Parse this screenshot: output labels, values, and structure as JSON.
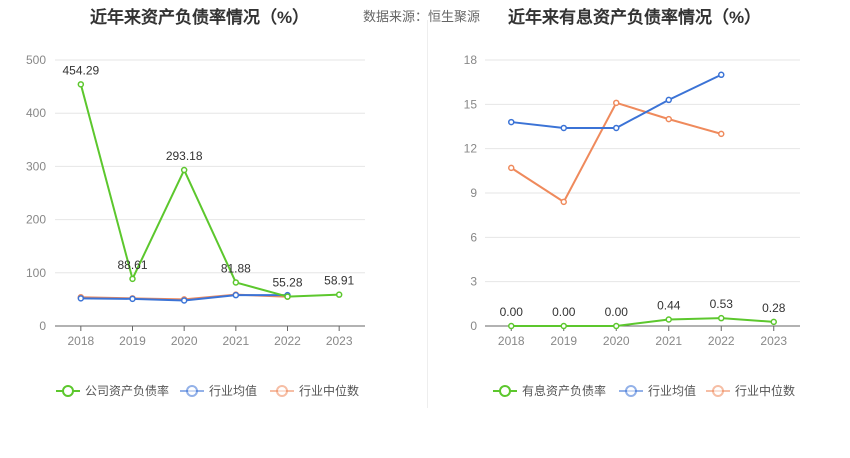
{
  "header": {
    "left_title": "近年来资产负债率情况（%）",
    "right_title": "近年来有息资产负债率情况（%）",
    "source": "数据来源：恒生聚源"
  },
  "chart_data": [
    {
      "type": "line",
      "title": "近年来资产负债率情况（%）",
      "categories": [
        "2018",
        "2019",
        "2020",
        "2021",
        "2022",
        "2023"
      ],
      "ylim": [
        0,
        500
      ],
      "yticks": [
        "0",
        "100",
        "200",
        "300",
        "400",
        "500"
      ],
      "grid": true,
      "legend_position": "bottom",
      "series": [
        {
          "name": "公司资产负债率",
          "color": "#5cc72d",
          "values": [
            454.29,
            88.61,
            293.18,
            81.88,
            55.28,
            58.91
          ],
          "labels": [
            "454.29",
            "88.61",
            "293.18",
            "81.88",
            "55.28",
            "58.91"
          ]
        },
        {
          "name": "行业均值",
          "color": "#3b73d6",
          "values": [
            52,
            51,
            48,
            58,
            58,
            null
          ]
        },
        {
          "name": "行业中位数",
          "color": "#ef8a5c",
          "values": [
            54,
            52,
            50,
            59,
            55,
            null
          ]
        }
      ]
    },
    {
      "type": "line",
      "title": "近年来有息资产负债率情况（%）",
      "categories": [
        "2018",
        "2019",
        "2020",
        "2021",
        "2022",
        "2023"
      ],
      "ylim": [
        0,
        18
      ],
      "yticks": [
        "0",
        "3",
        "6",
        "9",
        "12",
        "15",
        "18"
      ],
      "grid": true,
      "legend_position": "bottom",
      "series": [
        {
          "name": "有息资产负债率",
          "color": "#5cc72d",
          "values": [
            0.0,
            0.0,
            0.0,
            0.44,
            0.53,
            0.28
          ],
          "labels": [
            "0.00",
            "0.00",
            "0.00",
            "0.44",
            "0.53",
            "0.28"
          ]
        },
        {
          "name": "行业均值",
          "color": "#3b73d6",
          "values": [
            13.8,
            13.4,
            13.4,
            15.3,
            17.0,
            null
          ]
        },
        {
          "name": "行业中位数",
          "color": "#ef8a5c",
          "values": [
            10.7,
            8.4,
            15.1,
            14.0,
            13.0,
            null
          ]
        }
      ]
    }
  ]
}
